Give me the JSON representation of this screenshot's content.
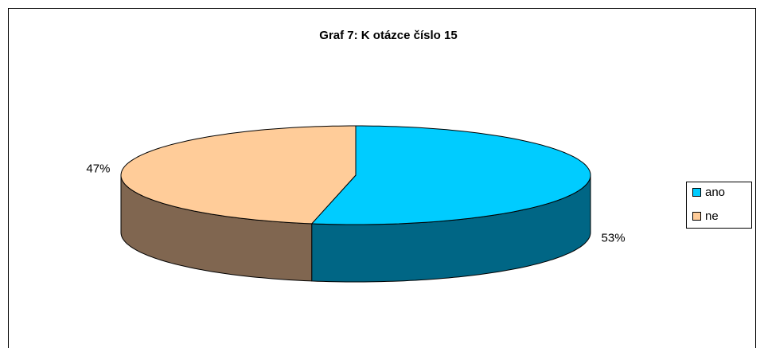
{
  "chart_data": {
    "type": "pie",
    "title": "Graf 7: K otázce číslo 15",
    "categories": [
      "ano",
      "ne"
    ],
    "values": [
      53,
      47
    ],
    "value_labels": [
      "53%",
      "47%"
    ],
    "colors": [
      "#00ccff",
      "#ffcc99"
    ],
    "side_colors": [
      "#006685",
      "#806650"
    ],
    "legend": "right"
  }
}
